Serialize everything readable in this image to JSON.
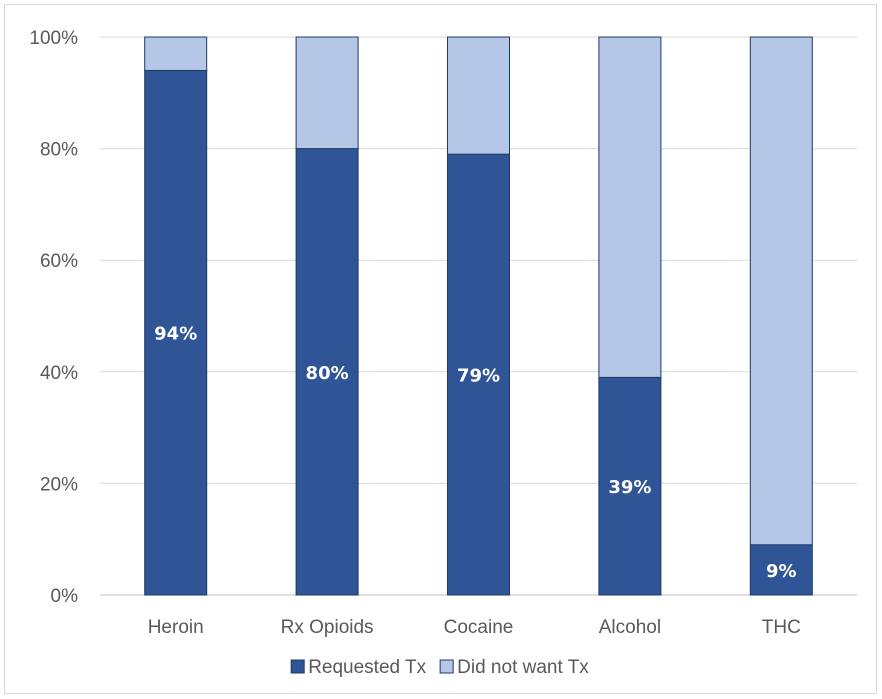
{
  "chart_data": {
    "type": "bar",
    "stacked": true,
    "percent_stacked": true,
    "categories": [
      "Heroin",
      "Rx Opioids",
      "Cocaine",
      "Alcohol",
      "THC"
    ],
    "series": [
      {
        "name": "Requested Tx",
        "values": [
          94,
          80,
          79,
          39,
          9
        ],
        "color": "#2f5597",
        "data_labels": [
          "94%",
          "80%",
          "79%",
          "39%",
          "9%"
        ]
      },
      {
        "name": "Did not want Tx",
        "values": [
          6,
          20,
          21,
          61,
          91
        ],
        "color": "#b4c7e7"
      }
    ],
    "y_ticks": [
      "0%",
      "20%",
      "40%",
      "60%",
      "80%",
      "100%"
    ],
    "ylim": [
      0,
      100
    ],
    "title": "",
    "xlabel": "",
    "ylabel": "",
    "grid": true,
    "legend_position": "bottom",
    "bar_outline_color": "#1f3864",
    "grid_color": "#d9d9d9",
    "axis_color": "#bfbfbf"
  }
}
